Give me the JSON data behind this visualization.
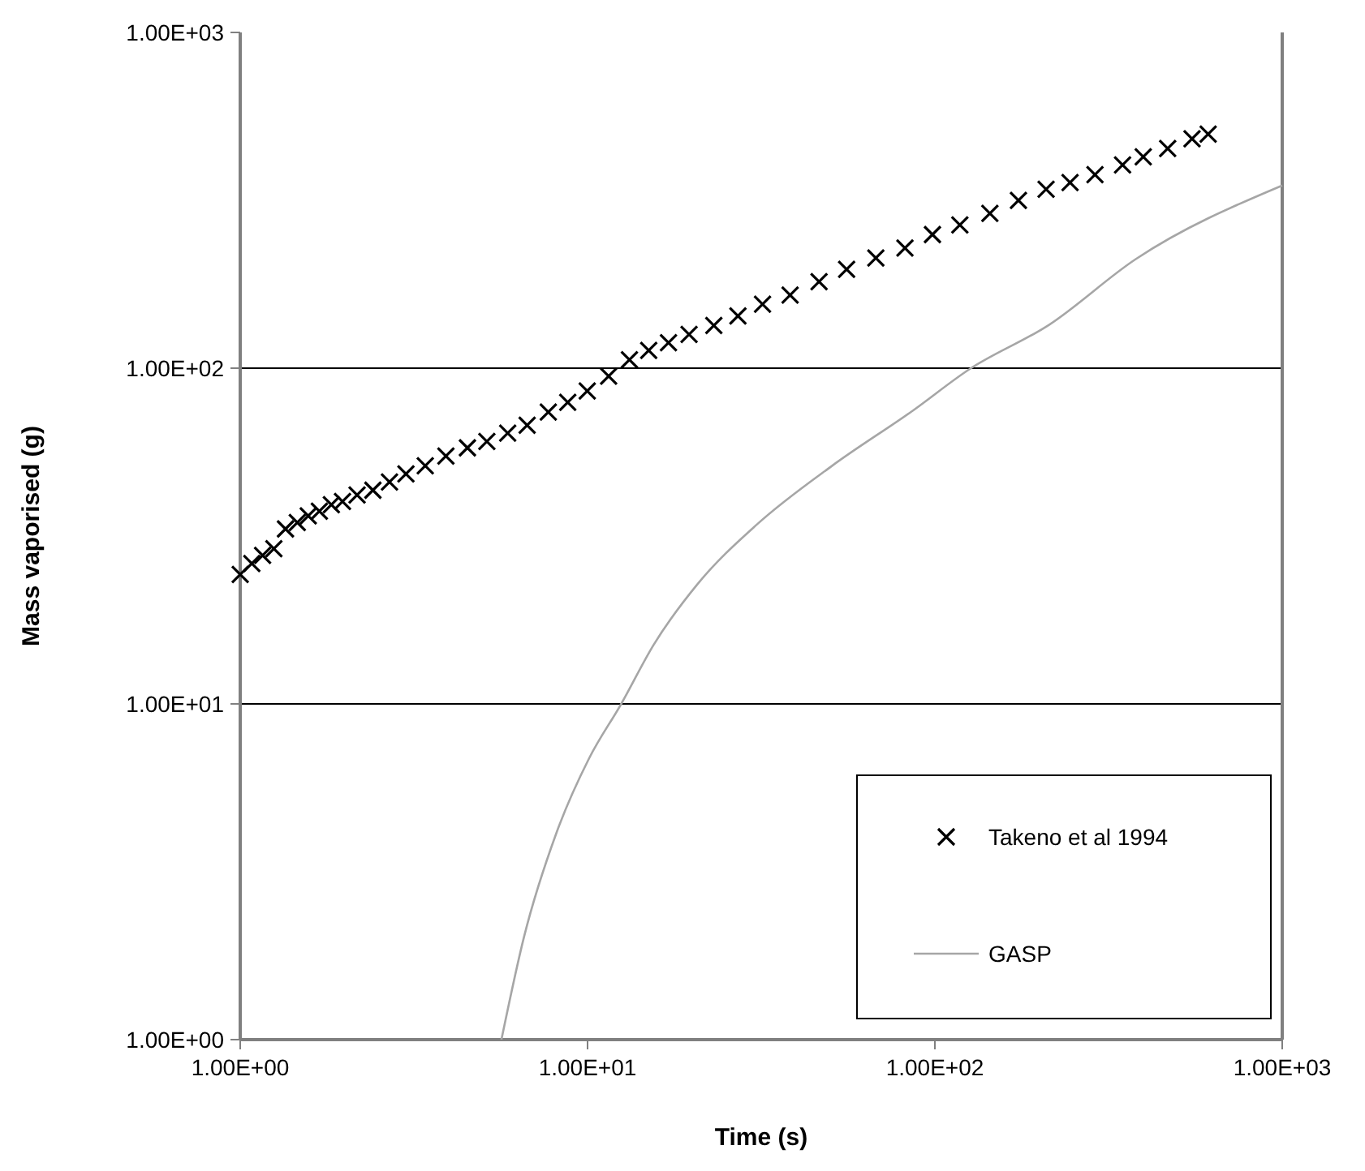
{
  "chart_data": {
    "type": "scatter",
    "xlabel": "Time (s)",
    "ylabel": "Mass vaporised (g)",
    "log": "xy",
    "grid": "y",
    "legend": "bottom right",
    "xlim": [
      1,
      1000
    ],
    "ylim": [
      1,
      1000
    ],
    "xticks": [
      {
        "value": 1,
        "label": "1.00E+00"
      },
      {
        "value": 10,
        "label": "1.00E+01"
      },
      {
        "value": 100,
        "label": "1.00E+02"
      },
      {
        "value": 1000,
        "label": "1.00E+03"
      }
    ],
    "yticks": [
      {
        "value": 1,
        "label": "1.00E+00"
      },
      {
        "value": 10,
        "label": "1.00E+01"
      },
      {
        "value": 100,
        "label": "1.00E+02"
      },
      {
        "value": 1000,
        "label": "1.00E+03"
      }
    ],
    "series": [
      {
        "name": "Takeno et al 1994",
        "marker": "cross",
        "color": "#000000",
        "x": [
          1,
          1.08,
          1.16,
          1.25,
          1.35,
          1.46,
          1.57,
          1.69,
          1.83,
          1.97,
          2.17,
          2.41,
          2.69,
          3,
          3.41,
          3.91,
          4.51,
          5.13,
          5.89,
          6.7,
          7.71,
          8.77,
          9.98,
          11.5,
          13.2,
          15,
          17.1,
          19.6,
          23.1,
          27.1,
          31.9,
          38.3,
          46.4,
          55.7,
          67.6,
          82,
          98.4,
          118,
          144,
          174,
          209,
          245,
          289,
          347,
          398,
          468,
          550,
          612
        ],
        "values": [
          24.3,
          26.2,
          27.7,
          29,
          33.2,
          34.7,
          36.3,
          37.5,
          39.2,
          40.1,
          41.9,
          43.3,
          45.8,
          48.4,
          51.2,
          54.7,
          57.9,
          60.5,
          64,
          67.6,
          74,
          79.1,
          85.5,
          94.6,
          106,
          113,
          119,
          126,
          134,
          143,
          155,
          165,
          181,
          197,
          213,
          228,
          250,
          267,
          289,
          316,
          341,
          357,
          377,
          403,
          426,
          451,
          482,
          498
        ]
      },
      {
        "name": "GASP",
        "type": "line",
        "marker": "none",
        "line_style": "solid",
        "color": "#a6a6a6",
        "x": [
          5.65,
          6.56,
          8.13,
          10.1,
          12.5,
          15.5,
          20.7,
          30.8,
          50.6,
          86.5,
          125,
          214,
          378,
          1000
        ],
        "values": [
          1,
          2.02,
          4.12,
          6.88,
          10,
          15,
          22.7,
          34.3,
          51.2,
          74.8,
          98.9,
          135,
          211,
          350
        ]
      }
    ]
  }
}
